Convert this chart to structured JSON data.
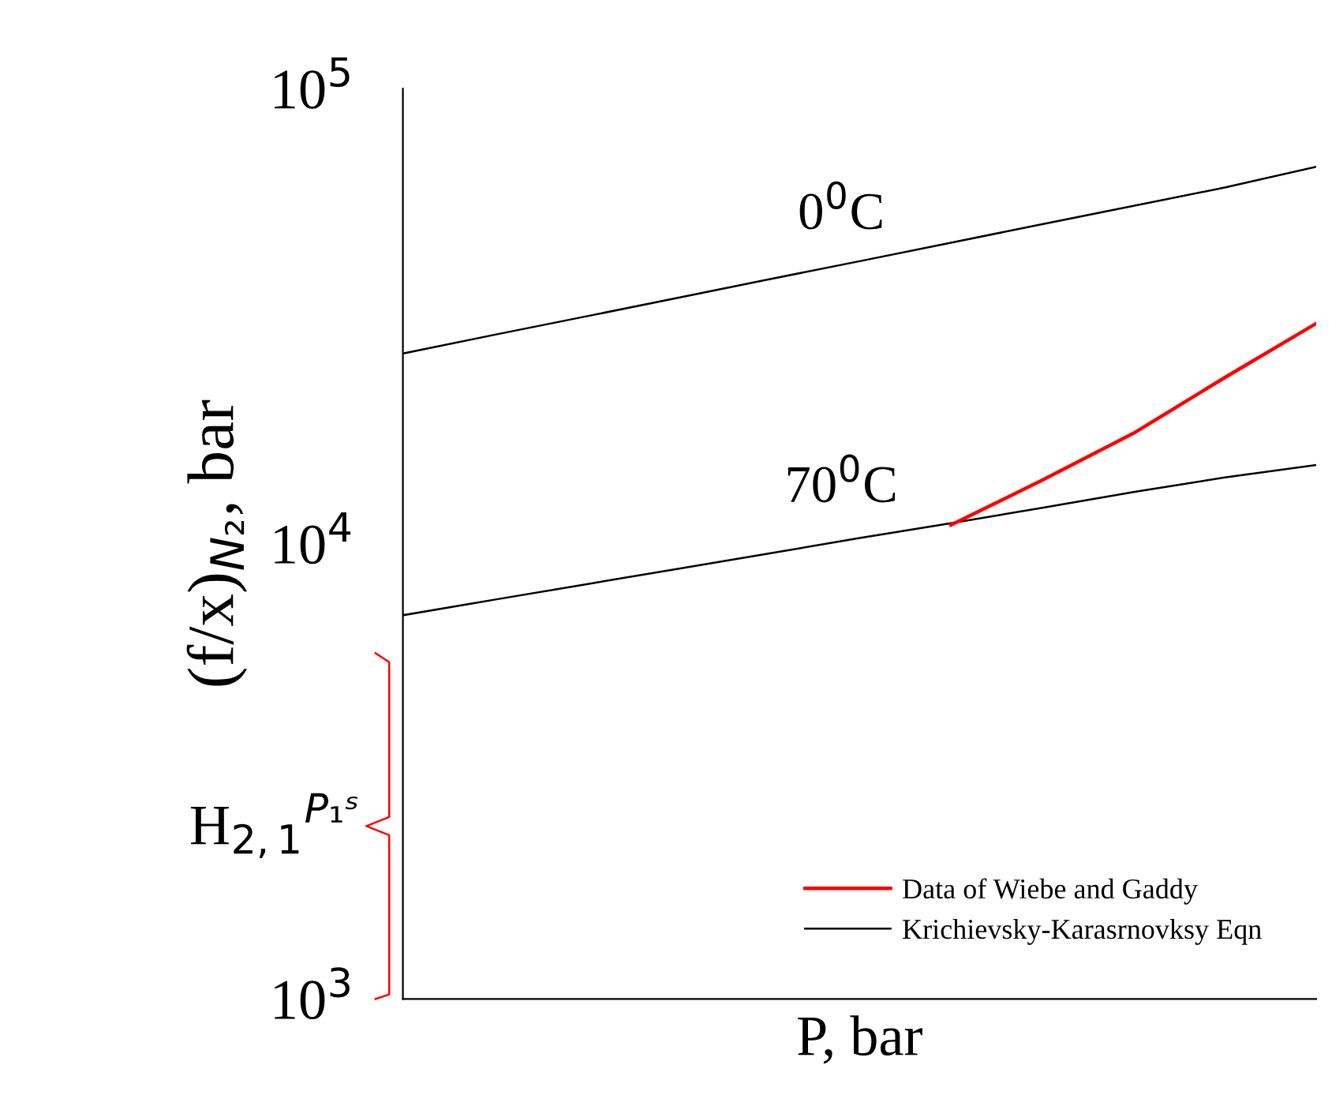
{
  "chart_data": {
    "type": "line",
    "xlabel": "P, bar",
    "ylabel": "(f/x)$_{N₂}$, bar",
    "log": "y",
    "ylim": [
      1000,
      100000
    ],
    "yticks": [
      {
        "value": 1000,
        "label": "10$^{3}$"
      },
      {
        "value": 10000,
        "label": "10$^{4}$"
      },
      {
        "value": 100000,
        "label": "10$^{5}$"
      }
    ],
    "categories": [
      null,
      null,
      null,
      null,
      null,
      null,
      null,
      null,
      null,
      null,
      null
    ],
    "series": [
      {
        "name": "Data of Wiebe and Gaddy",
        "color": "#ff0000",
        "values": [
          null,
          null,
          null,
          null,
          null,
          null,
          11000,
          13800,
          17500,
          23200,
          30500
        ]
      },
      {
        "name": "Krichievsky-Karasrnovksy Eqn",
        "color": "#000000",
        "values": [
          26200,
          28800,
          31600,
          34700,
          38100,
          41800,
          45900,
          50400,
          55300,
          60700,
          67400
        ]
      },
      {
        "color": "#000000",
        "values": [
          6970,
          7540,
          8150,
          8810,
          9520,
          10300,
          11100,
          12000,
          13000,
          14000,
          14900
        ]
      }
    ],
    "annotations": [
      "0$^{0}$C",
      "70$^{0}$C",
      "H$_{2,1}$$^{P₁ˢ}$"
    ],
    "legend": "bottom right",
    "grid": false,
    "marker": "none",
    "line_style": "solid"
  }
}
